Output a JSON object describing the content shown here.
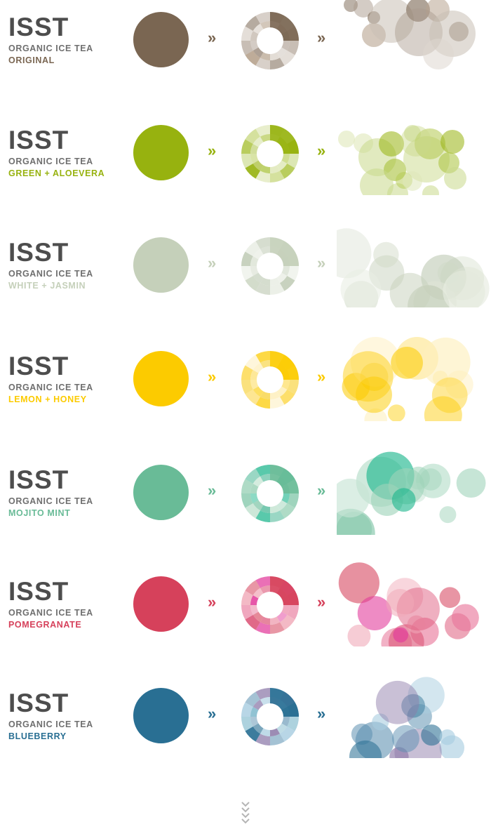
{
  "products": [
    {
      "brand": "ISST",
      "line": "ORGANIC ICE TEA",
      "flavor": "ORIGINAL",
      "color": "#7a6652",
      "flavor_color": "#7a6652",
      "palette": [
        "#7a6652",
        "#a99a8c",
        "#c9bfb5",
        "#ded7cf",
        "#b8a48f"
      ]
    },
    {
      "brand": "ISST",
      "line": "ORGANIC ICE TEA",
      "flavor": "GREEN + ALOEVERA",
      "color": "#97b20f",
      "flavor_color": "#97b20f",
      "palette": [
        "#97b20f",
        "#b3c94f",
        "#c9d98a",
        "#dfe8b9",
        "#a9c23a"
      ]
    },
    {
      "brand": "ISST",
      "line": "ORGANIC ICE TEA",
      "flavor": "WHITE + JASMIN",
      "color": "#c5d0ba",
      "flavor_color": "#c5d0ba",
      "palette": [
        "#bcc8b1",
        "#cfd8c6",
        "#dde4d6",
        "#e9eee4",
        "#c7d1bd"
      ]
    },
    {
      "brand": "ISST",
      "line": "ORGANIC ICE TEA",
      "flavor": "LEMON + HONEY",
      "color": "#fccb00",
      "flavor_color": "#fccb00",
      "palette": [
        "#fccb00",
        "#fdd84a",
        "#fde487",
        "#feefbd",
        "#f7d033"
      ]
    },
    {
      "brand": "ISST",
      "line": "ORGANIC ICE TEA",
      "flavor": "MOJITO MINT",
      "color": "#69bb97",
      "flavor_color": "#69bb97",
      "palette": [
        "#69bb97",
        "#1bb58c",
        "#9ed3b9",
        "#c7e5d4",
        "#47b694"
      ]
    },
    {
      "brand": "ISST",
      "line": "ORGANIC ICE TEA",
      "flavor": "POMEGRANATE",
      "color": "#d6415b",
      "flavor_color": "#d6415b",
      "palette": [
        "#d6415b",
        "#e8769a",
        "#e23b9b",
        "#f0a9b8",
        "#dd5a7c"
      ]
    },
    {
      "brand": "ISST",
      "line": "ORGANIC ICE TEA",
      "flavor": "BLUEBERRY",
      "color": "#296f93",
      "flavor_color": "#296f93",
      "palette": [
        "#296f93",
        "#5a8fb0",
        "#7fb9cc",
        "#8c79a8",
        "#a8cde0"
      ]
    }
  ],
  "arrow_glyph": "»",
  "more_glyph": "scroll-down-chevrons-icon",
  "more_color": "#b5b5b5"
}
